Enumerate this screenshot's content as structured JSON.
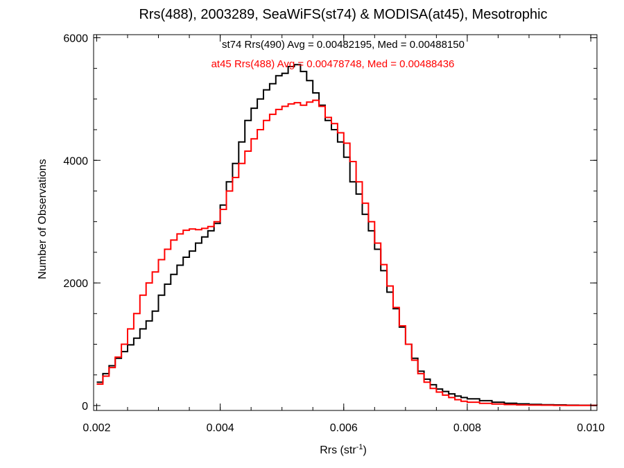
{
  "chart_data": {
    "type": "line",
    "title": "Rrs(488), 2003289, SeaWiFS(st74) & MODISA(at45), Mesotrophic",
    "xlabel": {
      "main": "Rrs (str",
      "sup": "-1",
      "close": ")"
    },
    "ylabel": "Number of Observations",
    "xlim": [
      0.00195,
      0.0101
    ],
    "ylim": [
      -80,
      6050
    ],
    "xticks": [
      0.002,
      0.004,
      0.006,
      0.008,
      0.01
    ],
    "xtick_labels": [
      "0.002",
      "0.004",
      "0.006",
      "0.008",
      "0.010"
    ],
    "yticks": [
      0,
      2000,
      4000,
      6000
    ],
    "ytick_labels": [
      "0",
      "2000",
      "4000",
      "6000"
    ],
    "x_minor_step": 0.0005,
    "y_minor_step": 500,
    "grid": false,
    "step": true,
    "annotations": [
      {
        "text": "st74 Rrs(490) Avg = 0.00482195, Med = 0.00488150",
        "color": "#000000"
      },
      {
        "text": "at45 Rrs(488) Avg = 0.00478748, Med = 0.00488436",
        "color": "#ff0000"
      }
    ],
    "series": [
      {
        "color": "#000000",
        "x": [
          0.002,
          0.0021,
          0.0022,
          0.0023,
          0.0024,
          0.0025,
          0.0026,
          0.0027,
          0.0028,
          0.0029,
          0.003,
          0.0031,
          0.0032,
          0.0033,
          0.0034,
          0.0035,
          0.0036,
          0.0037,
          0.0038,
          0.0039,
          0.004,
          0.0041,
          0.0042,
          0.0043,
          0.0044,
          0.0045,
          0.0046,
          0.0047,
          0.0048,
          0.0049,
          0.005,
          0.0051,
          0.0052,
          0.0053,
          0.0054,
          0.0055,
          0.0056,
          0.0057,
          0.0058,
          0.0059,
          0.006,
          0.0061,
          0.0062,
          0.0063,
          0.0064,
          0.0065,
          0.0066,
          0.0067,
          0.0068,
          0.0069,
          0.007,
          0.0071,
          0.0072,
          0.0073,
          0.0074,
          0.0075,
          0.0076,
          0.0077,
          0.0078,
          0.0079,
          0.008,
          0.0082,
          0.0084,
          0.0086,
          0.0088,
          0.009,
          0.0092,
          0.0094,
          0.0096,
          0.0098,
          0.01,
          0.0101
        ],
        "y": [
          380,
          520,
          650,
          770,
          880,
          990,
          1100,
          1250,
          1380,
          1540,
          1800,
          1980,
          2140,
          2290,
          2420,
          2520,
          2650,
          2750,
          2850,
          2970,
          3270,
          3650,
          3950,
          4300,
          4650,
          4850,
          5000,
          5150,
          5250,
          5380,
          5420,
          5530,
          5560,
          5450,
          5300,
          5100,
          4900,
          4650,
          4500,
          4300,
          4050,
          3650,
          3450,
          3120,
          2850,
          2550,
          2200,
          1850,
          1580,
          1280,
          1000,
          770,
          560,
          430,
          340,
          270,
          230,
          190,
          155,
          130,
          110,
          80,
          55,
          38,
          28,
          20,
          14,
          10,
          6,
          5,
          4,
          3
        ]
      },
      {
        "color": "#ff0000",
        "x": [
          0.002,
          0.0021,
          0.0022,
          0.0023,
          0.0024,
          0.0025,
          0.0026,
          0.0027,
          0.0028,
          0.0029,
          0.003,
          0.0031,
          0.0032,
          0.0033,
          0.0034,
          0.0035,
          0.0036,
          0.0037,
          0.0038,
          0.0039,
          0.004,
          0.0041,
          0.0042,
          0.0043,
          0.0044,
          0.0045,
          0.0046,
          0.0047,
          0.0048,
          0.0049,
          0.005,
          0.0051,
          0.0052,
          0.0053,
          0.0054,
          0.0055,
          0.0056,
          0.0057,
          0.0058,
          0.0059,
          0.006,
          0.0061,
          0.0062,
          0.0063,
          0.0064,
          0.0065,
          0.0066,
          0.0067,
          0.0068,
          0.0069,
          0.007,
          0.0071,
          0.0072,
          0.0073,
          0.0074,
          0.0075,
          0.0076,
          0.0077,
          0.0078,
          0.0079,
          0.008,
          0.0082,
          0.0084,
          0.0086,
          0.0088,
          0.009,
          0.0092,
          0.0094,
          0.0096,
          0.0098,
          0.01,
          0.0101
        ],
        "y": [
          350,
          480,
          620,
          790,
          1000,
          1250,
          1500,
          1800,
          2000,
          2180,
          2380,
          2550,
          2700,
          2800,
          2860,
          2880,
          2870,
          2890,
          2920,
          3000,
          3200,
          3500,
          3720,
          3950,
          4150,
          4350,
          4500,
          4650,
          4750,
          4830,
          4880,
          4920,
          4940,
          4900,
          4950,
          4980,
          4880,
          4700,
          4600,
          4450,
          4280,
          3980,
          3650,
          3300,
          3000,
          2650,
          2300,
          1950,
          1600,
          1300,
          1000,
          740,
          520,
          380,
          280,
          220,
          170,
          130,
          95,
          70,
          55,
          36,
          24,
          16,
          11,
          8,
          6,
          4,
          3,
          2,
          2,
          1
        ]
      }
    ]
  }
}
